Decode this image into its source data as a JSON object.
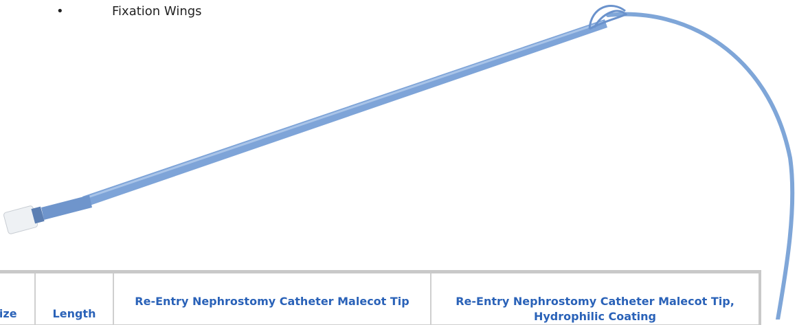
{
  "list": {
    "items": [
      "Fixation Wings"
    ]
  },
  "table": {
    "headers": [
      "Size",
      "Length",
      "Re-Entry Nephrostomy Catheter Malecot Tip",
      "Re-Entry Nephrostomy Catheter Malecot Tip, Hydrophilic Coating"
    ]
  }
}
